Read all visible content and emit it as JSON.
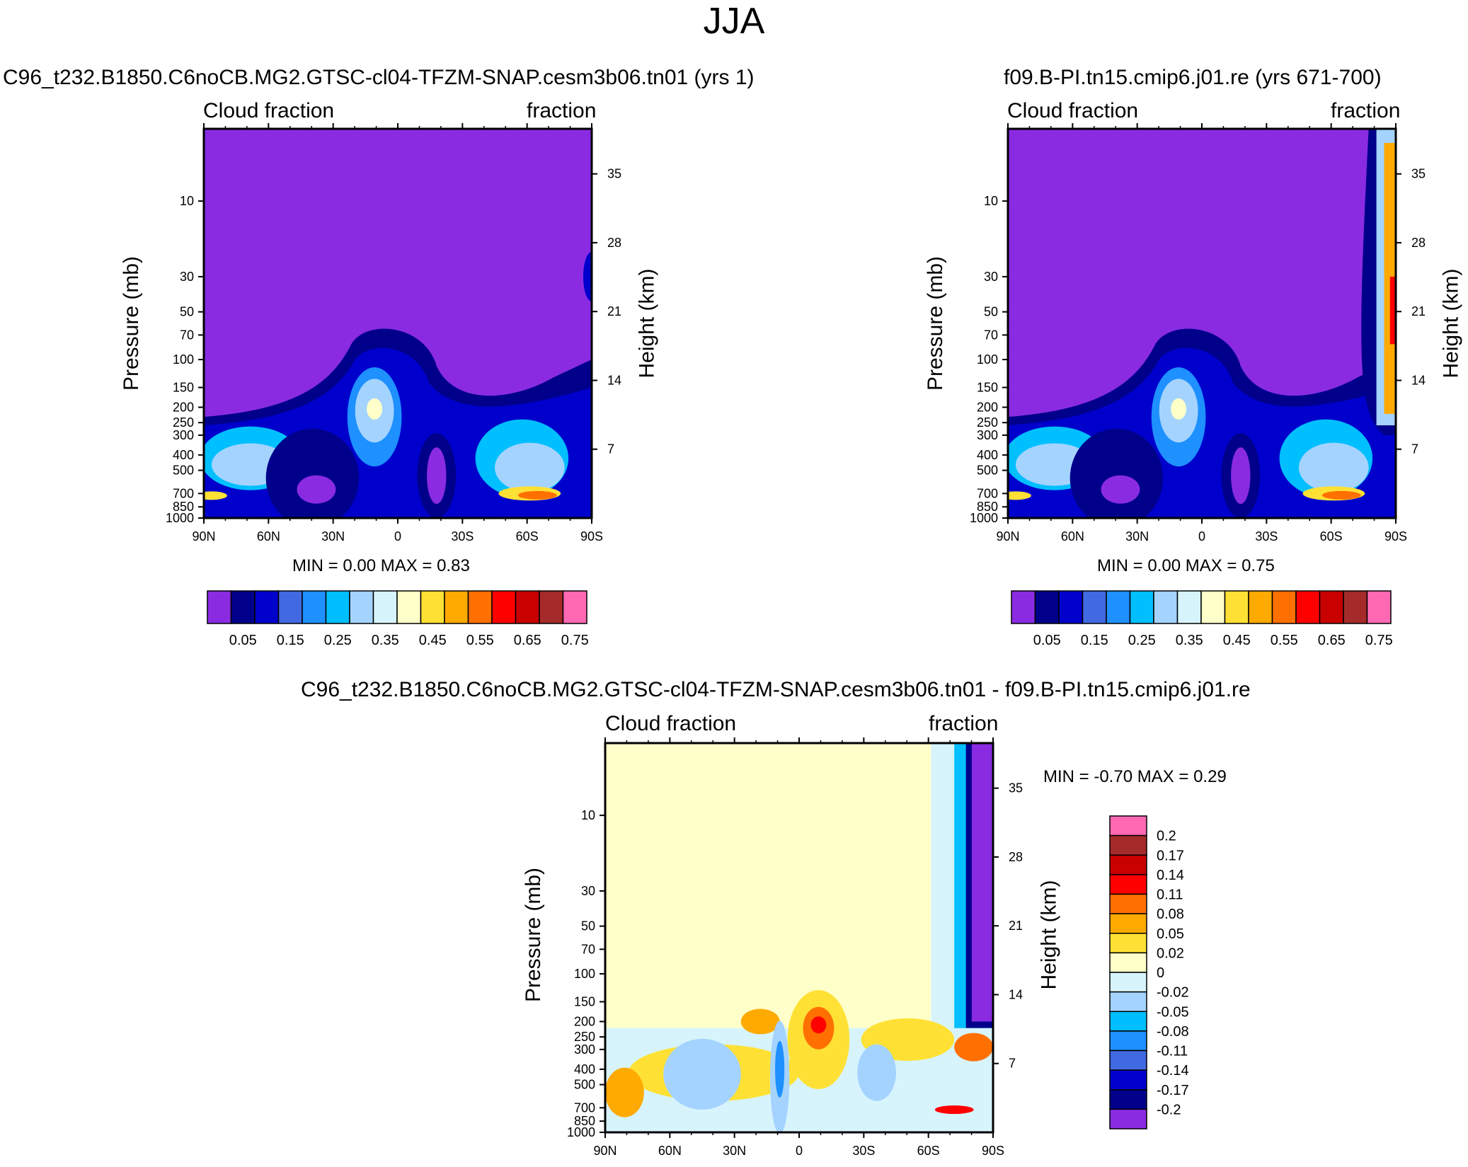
{
  "title": "JJA",
  "panels": [
    {
      "id": "test",
      "title": "C96_t232.B1850.C6noCB.MG2.GTSC-cl04-TFZM-SNAP.cesm3b06.tn01 (yrs 1)",
      "top_left_label": "Cloud fraction",
      "top_right_label": "fraction",
      "ylabel_left": "Pressure (mb)",
      "ylabel_right": "Height (km)",
      "minmax": "MIN =   0.00  MAX =   0.83"
    },
    {
      "id": "ctrl",
      "title": "f09.B-PI.tn15.cmip6.j01.re (yrs 671-700)",
      "top_left_label": "Cloud fraction",
      "top_right_label": "fraction",
      "ylabel_left": "Pressure (mb)",
      "ylabel_right": "Height (km)",
      "minmax": "MIN =   0.00  MAX =   0.75"
    },
    {
      "id": "diff",
      "title": "C96_t232.B1850.C6noCB.MG2.GTSC-cl04-TFZM-SNAP.cesm3b06.tn01 - f09.B-PI.tn15.cmip6.j01.re",
      "top_left_label": "Cloud fraction",
      "top_right_label": "fraction",
      "ylabel_left": "Pressure (mb)",
      "ylabel_right": "Height (km)",
      "minmax": "MIN =  -0.70  MAX =   0.29"
    }
  ],
  "chart_data": [
    {
      "type": "heatmap",
      "title": "C96_t232.B1850.C6noCB.MG2.GTSC-cl04-TFZM-SNAP.cesm3b06.tn01 (yrs 1)",
      "xlabel": "",
      "ylabel": "Pressure (mb)",
      "ylabel_right": "Height (km)",
      "x_ticks": [
        "90N",
        "60N",
        "30N",
        "0",
        "30S",
        "60S",
        "90S"
      ],
      "y_ticks": [
        "10",
        "30",
        "50",
        "70",
        "100",
        "150",
        "200",
        "250",
        "300",
        "400",
        "500",
        "700",
        "850",
        "1000"
      ],
      "y_ticks_right": [
        "35",
        "28",
        "21",
        "14",
        "7"
      ],
      "colorbar_labels": [
        "0.05",
        "0.15",
        "0.25",
        "0.35",
        "0.45",
        "0.55",
        "0.65",
        "0.75"
      ],
      "min": 0.0,
      "max": 0.83
    },
    {
      "type": "heatmap",
      "title": "f09.B-PI.tn15.cmip6.j01.re (yrs 671-700)",
      "xlabel": "",
      "ylabel": "Pressure (mb)",
      "ylabel_right": "Height (km)",
      "x_ticks": [
        "90N",
        "60N",
        "30N",
        "0",
        "30S",
        "60S",
        "90S"
      ],
      "y_ticks": [
        "10",
        "30",
        "50",
        "70",
        "100",
        "150",
        "200",
        "250",
        "300",
        "400",
        "500",
        "700",
        "850",
        "1000"
      ],
      "y_ticks_right": [
        "35",
        "28",
        "21",
        "14",
        "7"
      ],
      "colorbar_labels": [
        "0.05",
        "0.15",
        "0.25",
        "0.35",
        "0.45",
        "0.55",
        "0.65",
        "0.75"
      ],
      "min": 0.0,
      "max": 0.75
    },
    {
      "type": "heatmap",
      "title": "C96_t232.B1850.C6noCB.MG2.GTSC-cl04-TFZM-SNAP.cesm3b06.tn01 - f09.B-PI.tn15.cmip6.j01.re",
      "xlabel": "",
      "ylabel": "Pressure (mb)",
      "ylabel_right": "Height (km)",
      "x_ticks": [
        "90N",
        "60N",
        "30N",
        "0",
        "30S",
        "60S",
        "90S"
      ],
      "y_ticks": [
        "10",
        "30",
        "50",
        "70",
        "100",
        "150",
        "200",
        "250",
        "300",
        "400",
        "500",
        "700",
        "850",
        "1000"
      ],
      "y_ticks_right": [
        "35",
        "28",
        "21",
        "14",
        "7"
      ],
      "colorbar_labels": [
        "0.2",
        "0.17",
        "0.14",
        "0.11",
        "0.08",
        "0.05",
        "0.02",
        "0",
        "-0.02",
        "-0.05",
        "-0.08",
        "-0.11",
        "-0.14",
        "-0.17",
        "-0.2"
      ],
      "min": -0.7,
      "max": 0.29
    }
  ],
  "colors": {
    "seq": [
      "#8a2be2",
      "#00008b",
      "#0000cd",
      "#4169e1",
      "#1e90ff",
      "#00bfff",
      "#a4d3ff",
      "#d7f4fc",
      "#ffffc9",
      "#ffe135",
      "#ffaa00",
      "#ff7000",
      "#ff0000",
      "#c80000",
      "#a52a2a",
      "#ff69b4"
    ],
    "div": [
      "#ff69b4",
      "#a52a2a",
      "#c80000",
      "#ff0000",
      "#ff7000",
      "#ffaa00",
      "#ffe135",
      "#ffffc9",
      "#d7f4fc",
      "#a4d3ff",
      "#00bfff",
      "#1e90ff",
      "#4169e1",
      "#0000cd",
      "#00008b",
      "#8a2be2"
    ]
  }
}
